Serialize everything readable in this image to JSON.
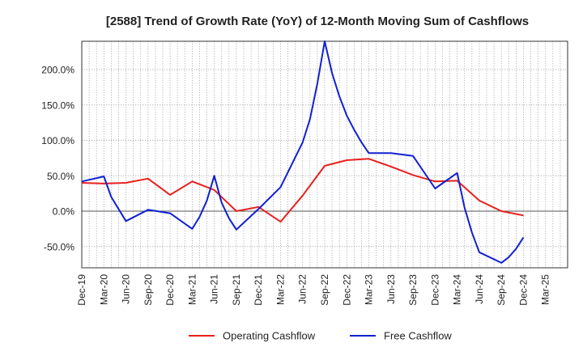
{
  "chart_data": {
    "type": "line",
    "title": "[2588]  Trend of Growth Rate (YoY) of 12-Month Moving Sum of Cashflows",
    "xlabel": "",
    "ylabel": "",
    "grid": true,
    "legend_position": "bottom",
    "ylim": [
      -80,
      240
    ],
    "y_ticks": [
      -50,
      0,
      50,
      100,
      150,
      200
    ],
    "y_tick_labels": [
      "-50.0%",
      "0.0%",
      "50.0%",
      "100.0%",
      "150.0%",
      "200.0%"
    ],
    "x_tick_labels": [
      "Dec-19",
      "Mar-20",
      "Jun-20",
      "Sep-20",
      "Dec-20",
      "Mar-21",
      "Jun-21",
      "Sep-21",
      "Dec-21",
      "Mar-22",
      "Jun-22",
      "Sep-22",
      "Dec-22",
      "Mar-23",
      "Jun-23",
      "Sep-23",
      "Dec-23",
      "Mar-24",
      "Jun-24",
      "Sep-24",
      "Dec-24",
      "Mar-25"
    ],
    "x": [
      "Dec-19",
      "Jan-20",
      "Feb-20",
      "Mar-20",
      "Apr-20",
      "May-20",
      "Jun-20",
      "Jul-20",
      "Aug-20",
      "Sep-20",
      "Oct-20",
      "Nov-20",
      "Dec-20",
      "Jan-21",
      "Feb-21",
      "Mar-21",
      "Apr-21",
      "May-21",
      "Jun-21",
      "Jul-21",
      "Aug-21",
      "Sep-21",
      "Oct-21",
      "Nov-21",
      "Dec-21",
      "Jan-22",
      "Feb-22",
      "Mar-22",
      "Apr-22",
      "May-22",
      "Jun-22",
      "Jul-22",
      "Aug-22",
      "Sep-22",
      "Oct-22",
      "Nov-22",
      "Dec-22",
      "Jan-23",
      "Feb-23",
      "Mar-23",
      "Apr-23",
      "May-23",
      "Jun-23",
      "Jul-23",
      "Aug-23",
      "Sep-23",
      "Oct-23",
      "Nov-23",
      "Dec-23",
      "Jan-24",
      "Feb-24",
      "Mar-24",
      "Apr-24",
      "May-24",
      "Jun-24",
      "Jul-24",
      "Aug-24",
      "Sep-24",
      "Oct-24",
      "Nov-24",
      "Dec-24"
    ],
    "series": [
      {
        "name": "Operating Cashflow",
        "color": "#e8201e",
        "values": [
          40,
          null,
          null,
          39,
          null,
          null,
          40,
          null,
          null,
          46,
          null,
          null,
          23,
          null,
          null,
          42,
          null,
          null,
          30,
          null,
          null,
          0,
          null,
          null,
          6,
          null,
          null,
          -15,
          null,
          null,
          22,
          null,
          null,
          64,
          null,
          null,
          72,
          null,
          null,
          74,
          null,
          null,
          63,
          null,
          null,
          51,
          null,
          null,
          42,
          null,
          null,
          43,
          null,
          null,
          15,
          null,
          null,
          0,
          null,
          null,
          -6
        ]
      },
      {
        "name": "Free Cashflow",
        "color": "#1020d0",
        "values": [
          42,
          null,
          null,
          49,
          20,
          null,
          -14,
          null,
          null,
          2,
          null,
          null,
          -3,
          null,
          null,
          -25,
          -8,
          15,
          50,
          12,
          -10,
          -26,
          null,
          null,
          3,
          null,
          null,
          34,
          null,
          null,
          97,
          130,
          180,
          240,
          195,
          162,
          135,
          115,
          97,
          82,
          null,
          null,
          82,
          null,
          null,
          78,
          null,
          null,
          32,
          null,
          null,
          54,
          5,
          -30,
          -58,
          null,
          null,
          -73,
          -65,
          -53,
          -37
        ]
      }
    ]
  }
}
